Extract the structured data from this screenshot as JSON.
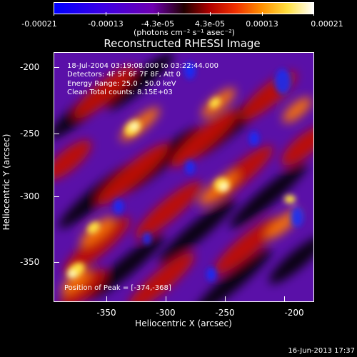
{
  "colorbar": {
    "tick_labels": [
      "-0.00021",
      "-0.00013",
      "-4.3e-05",
      "4.3e-05",
      "0.00013",
      "0.00021"
    ],
    "units": "(photons cm⁻² s⁻¹ asec⁻²)",
    "colors": [
      "#0000ff",
      "#3c00e0",
      "#6a00b8",
      "#a01030",
      "#e02000",
      "#ff7000",
      "#ffc000",
      "#ffff90",
      "#ffffff"
    ]
  },
  "title": "Reconstructed RHESSI Image",
  "annotations": {
    "time_range": "18-Jul-2004 03:19:08.000 to 03:22:44.000",
    "detectors": "Detectors: 4F 5F 6F 7F 8F, Att 0",
    "energy_range": "Energy Range: 25.0 - 50.0 keV",
    "clean_counts": "Clean     Total counts: 8.15E+03",
    "peak_position": "Position of Peak = [-374,-368]"
  },
  "axes": {
    "xlabel": "Heliocentric X (arcsec)",
    "ylabel": "Heliocentric Y (arcsec)",
    "x_ticks": [
      "-350",
      "-300",
      "-250",
      "-200"
    ],
    "y_ticks": [
      "-200",
      "-250",
      "-300",
      "-350"
    ]
  },
  "timestamp": "16-Jun-2013 17:37"
}
